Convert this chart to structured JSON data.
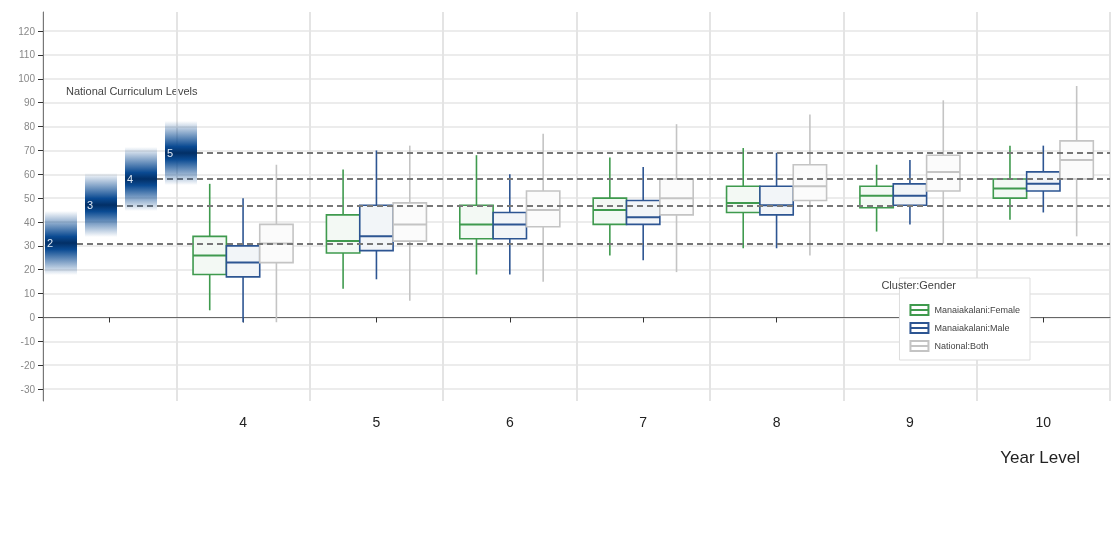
{
  "chart_data": {
    "type": "box",
    "xlabel": "Year Level",
    "legend_title": "Cluster:Gender",
    "annotations": [
      "National Curriculum Levels",
      "2",
      "3",
      "4",
      "5"
    ],
    "categories": [
      null,
      "4",
      "5",
      "6",
      "7",
      "8",
      "9",
      "10"
    ],
    "ylim": [
      -35,
      128
    ],
    "yticks": [
      -30,
      -20,
      -10,
      0,
      10,
      20,
      30,
      40,
      50,
      60,
      70,
      80,
      90,
      100,
      110,
      120
    ],
    "grid": true,
    "legend": "bottom right",
    "series": [
      {
        "name": "Manaiakalani:Female",
        "color": "#3f9a4e",
        "boxes": [
          null,
          {
            "low": 3,
            "q1": 18,
            "median": 26,
            "q3": 34,
            "high": 56
          },
          {
            "low": 12,
            "q1": 27,
            "median": 32,
            "q3": 43,
            "high": 62
          },
          {
            "low": 18,
            "q1": 33,
            "median": 39,
            "q3": 47,
            "high": 68
          },
          {
            "low": 26,
            "q1": 39,
            "median": 45,
            "q3": 50,
            "high": 67
          },
          {
            "low": 29,
            "q1": 44,
            "median": 48,
            "q3": 55,
            "high": 71
          },
          {
            "low": 36,
            "q1": 46,
            "median": 51,
            "q3": 55,
            "high": 64
          },
          {
            "low": 41,
            "q1": 50,
            "median": 54,
            "q3": 58,
            "high": 72
          }
        ]
      },
      {
        "name": "Manaiakalani:Male",
        "color": "#2d5592",
        "boxes": [
          null,
          {
            "low": -2,
            "q1": 17,
            "median": 23,
            "q3": 30,
            "high": 50
          },
          {
            "low": 16,
            "q1": 28,
            "median": 34,
            "q3": 47,
            "high": 70
          },
          {
            "low": 18,
            "q1": 33,
            "median": 39,
            "q3": 44,
            "high": 60
          },
          {
            "low": 24,
            "q1": 39,
            "median": 42,
            "q3": 49,
            "high": 63
          },
          {
            "low": 29,
            "q1": 43,
            "median": 47,
            "q3": 55,
            "high": 69
          },
          {
            "low": 39,
            "q1": 47,
            "median": 51,
            "q3": 56,
            "high": 66
          },
          {
            "low": 44,
            "q1": 53,
            "median": 56,
            "q3": 61,
            "high": 72
          }
        ]
      },
      {
        "name": "National:Both",
        "color": "#c4c4c4",
        "boxes": [
          null,
          {
            "low": -2,
            "q1": 23,
            "median": 31,
            "q3": 39,
            "high": 64
          },
          {
            "low": 7,
            "q1": 32,
            "median": 39,
            "q3": 48,
            "high": 72
          },
          {
            "low": 15,
            "q1": 38,
            "median": 45,
            "q3": 53,
            "high": 77
          },
          {
            "low": 19,
            "q1": 43,
            "median": 50,
            "q3": 58,
            "high": 81
          },
          {
            "low": 26,
            "q1": 49,
            "median": 55,
            "q3": 64,
            "high": 85
          },
          {
            "low": 31,
            "q1": 53,
            "median": 61,
            "q3": 68,
            "high": 91
          },
          {
            "low": 34,
            "q1": 58,
            "median": 66,
            "q3": 74,
            "high": 97
          }
        ]
      }
    ],
    "ref_lines": [
      {
        "axis": "y",
        "value": 31,
        "color": "#777777",
        "line_style": "dashed"
      },
      {
        "axis": "y",
        "value": 47,
        "color": "#777777",
        "line_style": "dashed"
      },
      {
        "axis": "y",
        "value": 58,
        "color": "#777777",
        "line_style": "dashed"
      },
      {
        "axis": "y",
        "value": 69,
        "color": "#777777",
        "line_style": "dashed"
      }
    ]
  }
}
